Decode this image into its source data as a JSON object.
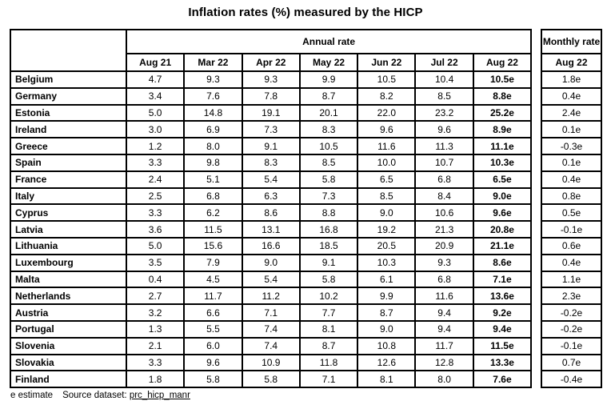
{
  "title": "Inflation rates (%) measured by the HICP",
  "chart_data": {
    "type": "table",
    "title": "Inflation rates (%) measured by the HICP",
    "column_groups": [
      {
        "label": "Annual rate",
        "span": 7
      },
      {
        "label": "Monthly rate",
        "span": 1
      }
    ],
    "annual_columns": [
      "Aug 21",
      "Mar 22",
      "Apr 22",
      "May 22",
      "Jun 22",
      "Jul 22",
      "Aug 22"
    ],
    "monthly_column": "Aug 22",
    "rows": [
      {
        "country": "Belgium",
        "annual": [
          "4.7",
          "9.3",
          "9.3",
          "9.9",
          "10.5",
          "10.4",
          "10.5e"
        ],
        "monthly": "1.8e"
      },
      {
        "country": "Germany",
        "annual": [
          "3.4",
          "7.6",
          "7.8",
          "8.7",
          "8.2",
          "8.5",
          "8.8e"
        ],
        "monthly": "0.4e"
      },
      {
        "country": "Estonia",
        "annual": [
          "5.0",
          "14.8",
          "19.1",
          "20.1",
          "22.0",
          "23.2",
          "25.2e"
        ],
        "monthly": "2.4e"
      },
      {
        "country": "Ireland",
        "annual": [
          "3.0",
          "6.9",
          "7.3",
          "8.3",
          "9.6",
          "9.6",
          "8.9e"
        ],
        "monthly": "0.1e"
      },
      {
        "country": "Greece",
        "annual": [
          "1.2",
          "8.0",
          "9.1",
          "10.5",
          "11.6",
          "11.3",
          "11.1e"
        ],
        "monthly": "-0.3e"
      },
      {
        "country": "Spain",
        "annual": [
          "3.3",
          "9.8",
          "8.3",
          "8.5",
          "10.0",
          "10.7",
          "10.3e"
        ],
        "monthly": "0.1e"
      },
      {
        "country": "France",
        "annual": [
          "2.4",
          "5.1",
          "5.4",
          "5.8",
          "6.5",
          "6.8",
          "6.5e"
        ],
        "monthly": "0.4e"
      },
      {
        "country": "Italy",
        "annual": [
          "2.5",
          "6.8",
          "6.3",
          "7.3",
          "8.5",
          "8.4",
          "9.0e"
        ],
        "monthly": "0.8e"
      },
      {
        "country": "Cyprus",
        "annual": [
          "3.3",
          "6.2",
          "8.6",
          "8.8",
          "9.0",
          "10.6",
          "9.6e"
        ],
        "monthly": "0.5e"
      },
      {
        "country": "Latvia",
        "annual": [
          "3.6",
          "11.5",
          "13.1",
          "16.8",
          "19.2",
          "21.3",
          "20.8e"
        ],
        "monthly": "-0.1e"
      },
      {
        "country": "Lithuania",
        "annual": [
          "5.0",
          "15.6",
          "16.6",
          "18.5",
          "20.5",
          "20.9",
          "21.1e"
        ],
        "monthly": "0.6e"
      },
      {
        "country": "Luxembourg",
        "annual": [
          "3.5",
          "7.9",
          "9.0",
          "9.1",
          "10.3",
          "9.3",
          "8.6e"
        ],
        "monthly": "0.4e"
      },
      {
        "country": "Malta",
        "annual": [
          "0.4",
          "4.5",
          "5.4",
          "5.8",
          "6.1",
          "6.8",
          "7.1e"
        ],
        "monthly": "1.1e"
      },
      {
        "country": "Netherlands",
        "annual": [
          "2.7",
          "11.7",
          "11.2",
          "10.2",
          "9.9",
          "11.6",
          "13.6e"
        ],
        "monthly": "2.3e"
      },
      {
        "country": "Austria",
        "annual": [
          "3.2",
          "6.6",
          "7.1",
          "7.7",
          "8.7",
          "9.4",
          "9.2e"
        ],
        "monthly": "-0.2e"
      },
      {
        "country": "Portugal",
        "annual": [
          "1.3",
          "5.5",
          "7.4",
          "8.1",
          "9.0",
          "9.4",
          "9.4e"
        ],
        "monthly": "-0.2e"
      },
      {
        "country": "Slovenia",
        "annual": [
          "2.1",
          "6.0",
          "7.4",
          "8.7",
          "10.8",
          "11.7",
          "11.5e"
        ],
        "monthly": "-0.1e"
      },
      {
        "country": "Slovakia",
        "annual": [
          "3.3",
          "9.6",
          "10.9",
          "11.8",
          "12.6",
          "12.8",
          "13.3e"
        ],
        "monthly": "0.7e"
      },
      {
        "country": "Finland",
        "annual": [
          "1.8",
          "5.8",
          "5.8",
          "7.1",
          "8.1",
          "8.0",
          "7.6e"
        ],
        "monthly": "-0.4e"
      }
    ],
    "footnote": "e estimate",
    "source": "prc_hicp_manr"
  },
  "footer": {
    "estimate_note": "e estimate",
    "source_label": "Source dataset:",
    "source_link": "prc_hicp_manr"
  },
  "colors": {
    "text": "#000000",
    "border": "#000000",
    "background": "#ffffff"
  }
}
